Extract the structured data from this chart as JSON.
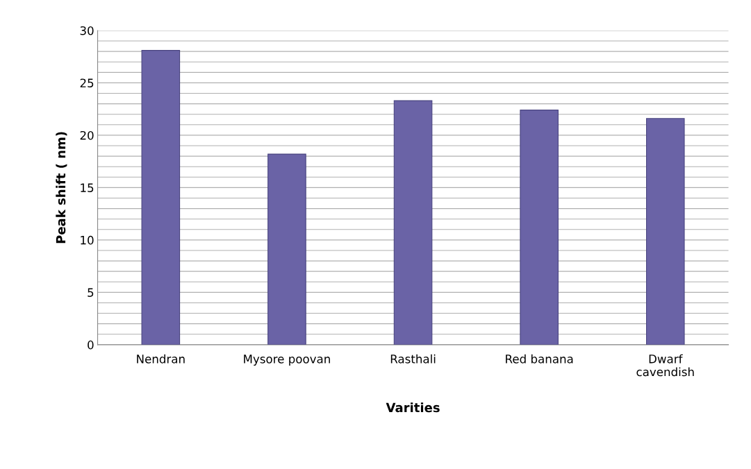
{
  "chart_data": {
    "type": "bar",
    "categories": [
      "Nendran",
      "Mysore poovan",
      "Rasthali",
      "Red banana",
      "Dwarf\ncavendish"
    ],
    "values": [
      28.1,
      18.2,
      23.3,
      22.4,
      21.6
    ],
    "color": "#6a63a6",
    "xlabel": "Varities",
    "ylabel": "Peak shift ( nm)",
    "ylim": [
      0,
      30
    ],
    "yticks": [
      0,
      {
        "value": 1,
        "label": null
      },
      {
        "value": 2,
        "label": null
      },
      {
        "value": 3,
        "label": null
      },
      {
        "value": 4,
        "label": null
      },
      5,
      {
        "value": 6,
        "label": null
      },
      {
        "value": 7,
        "label": null
      },
      {
        "value": 8,
        "label": null
      },
      {
        "value": 9,
        "label": null
      },
      10,
      {
        "value": 11,
        "label": null
      },
      {
        "value": 12,
        "label": null
      },
      {
        "value": 13,
        "label": null
      },
      {
        "value": 14,
        "label": null
      },
      15,
      {
        "value": 16,
        "label": null
      },
      {
        "value": 17,
        "label": null
      },
      {
        "value": 18,
        "label": null
      },
      {
        "value": 19,
        "label": null
      },
      20,
      {
        "value": 21,
        "label": null
      },
      {
        "value": 22,
        "label": null
      },
      {
        "value": 23,
        "label": null
      },
      {
        "value": 24,
        "label": null
      },
      25,
      {
        "value": 26,
        "label": null
      },
      {
        "value": 27,
        "label": null
      },
      {
        "value": 28,
        "label": null
      },
      {
        "value": 29,
        "label": null
      },
      30
    ],
    "grid": "y",
    "legend": false
  }
}
